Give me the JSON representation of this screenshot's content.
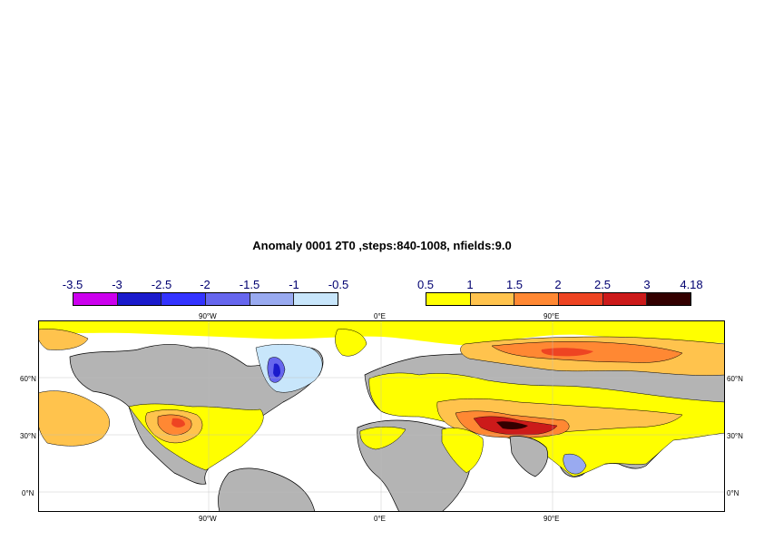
{
  "title": "Anomaly 0001 2T0 ,steps:840-1008, nfields:9.0",
  "colorbar_negative": {
    "labels": [
      "-3.5",
      "-3",
      "-2.5",
      "-2",
      "-1.5",
      "-1",
      "-0.5"
    ],
    "colors": [
      "#cc00ee",
      "#1a1acc",
      "#3333ff",
      "#6666ee",
      "#99aaf0",
      "#c8e6fb"
    ]
  },
  "colorbar_positive": {
    "labels": [
      "0.5",
      "1",
      "1.5",
      "2",
      "2.5",
      "3",
      "4.18"
    ],
    "colors": [
      "#ffff00",
      "#ffc34d",
      "#ff8833",
      "#ee4422",
      "#cc1a1a",
      "#330000"
    ]
  },
  "map": {
    "top_lon_labels": [
      "90°W",
      "0°E",
      "90°E"
    ],
    "bottom_lon_labels": [
      "90°W",
      "0°E",
      "90°E"
    ],
    "left_lat_labels": [
      "60°N",
      "30°N",
      "0°N"
    ],
    "right_lat_labels": [
      "60°N",
      "30°N",
      "0°N"
    ],
    "colors": {
      "land_no_anomaly": "#b4b4b4",
      "ocean_no_anomaly": "#ffffff",
      "coast": "#000000"
    }
  }
}
